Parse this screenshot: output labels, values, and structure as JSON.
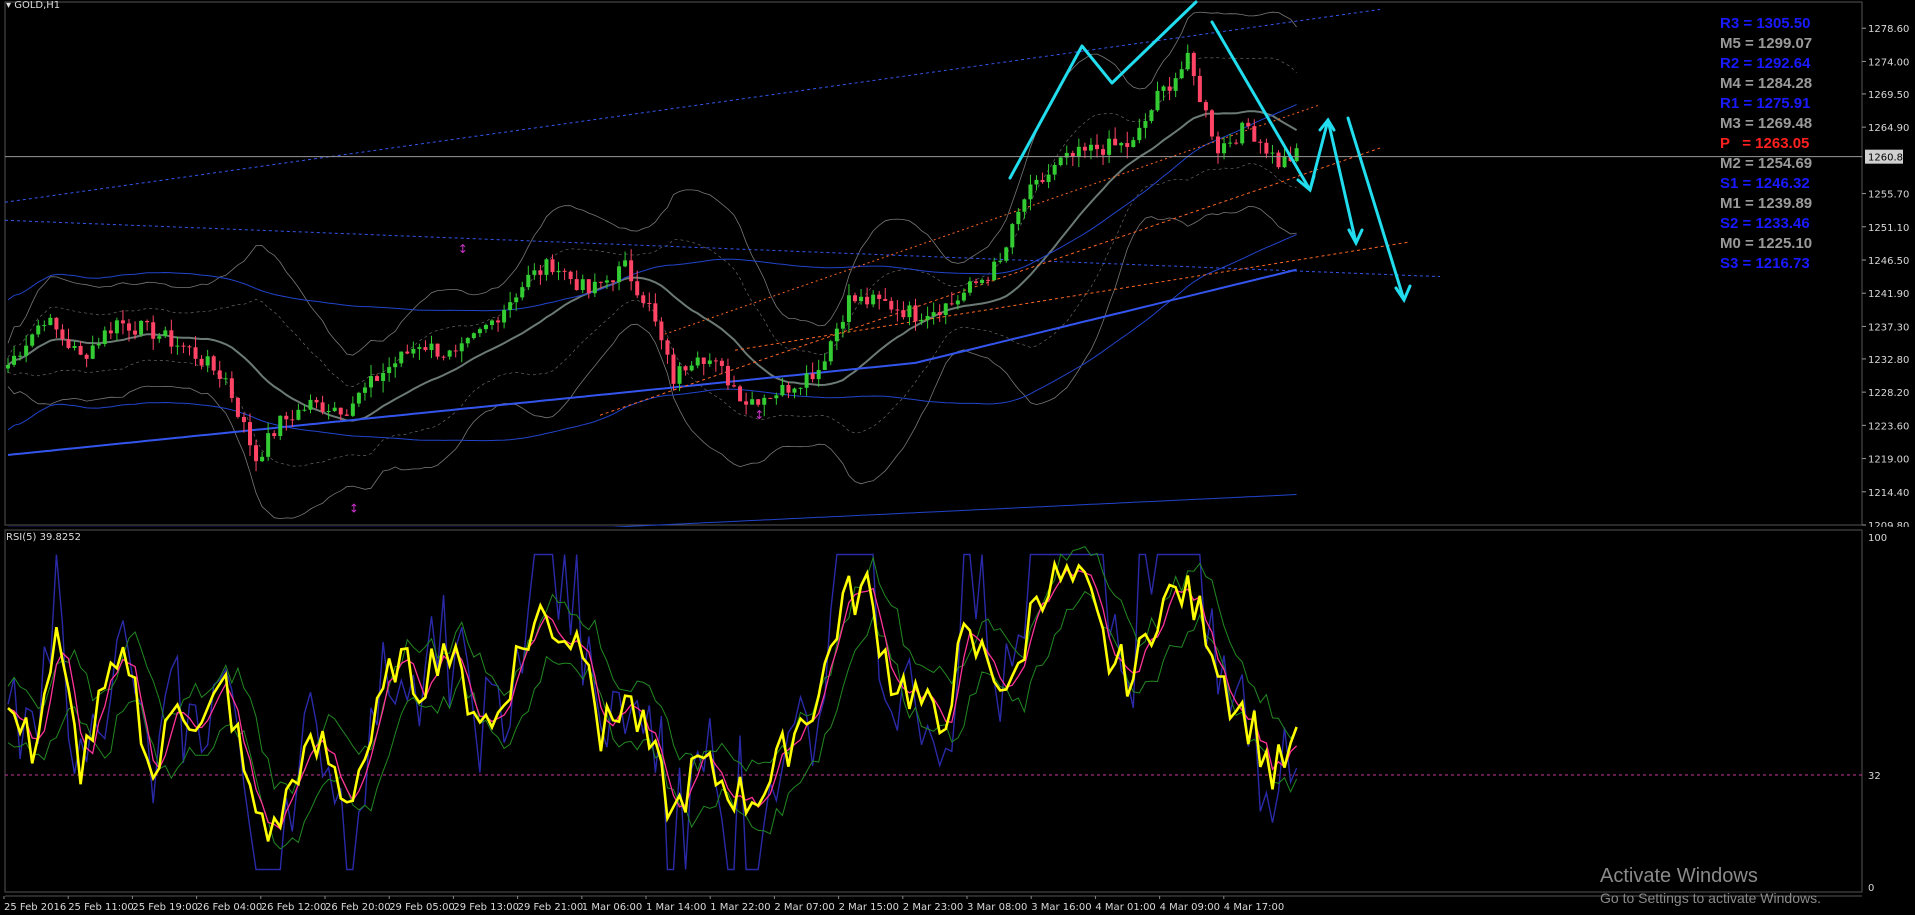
{
  "symbol_label": "GOLD,H1",
  "rsi_label": "RSI(5) 39.8252",
  "pivots": [
    {
      "label": "R3 = 1305.50",
      "color": "#1a1aff"
    },
    {
      "label": "M5 = 1299.07",
      "color": "#9a9a9a"
    },
    {
      "label": "R2 = 1292.64",
      "color": "#1a1aff"
    },
    {
      "label": "M4 = 1284.28",
      "color": "#9a9a9a"
    },
    {
      "label": "R1 = 1275.91",
      "color": "#1a1aff"
    },
    {
      "label": "M3 = 1269.48",
      "color": "#9a9a9a"
    },
    {
      "label": "P   = 1263.05",
      "color": "#ff2020"
    },
    {
      "label": "M2 = 1254.69",
      "color": "#9a9a9a"
    },
    {
      "label": "S1 = 1246.32",
      "color": "#1a1aff"
    },
    {
      "label": "M1 = 1239.89",
      "color": "#9a9a9a"
    },
    {
      "label": "S2 = 1233.46",
      "color": "#1a1aff"
    },
    {
      "label": "M0 = 1225.10",
      "color": "#9a9a9a"
    },
    {
      "label": "S3 = 1216.73",
      "color": "#1a1aff"
    }
  ],
  "watermark": {
    "title": "Activate Windows",
    "subtitle": "Go to Settings to activate Windows."
  },
  "colors": {
    "bull": "#33cc33",
    "bear": "#ff4466",
    "rsi_main": "#ffff00",
    "arrows": "#22ddee",
    "bands": "#2244cc"
  },
  "chart_data": [
    {
      "type": "candlestick",
      "symbol": "GOLD",
      "timeframe": "H1",
      "ylim": [
        1209.8,
        1281.4
      ],
      "price_ticks": [
        "1278.60",
        "1274.00",
        "1269.50",
        "1264.90",
        "1260.81",
        "1255.70",
        "1251.10",
        "1246.50",
        "1241.90",
        "1237.30",
        "1232.80",
        "1228.20",
        "1223.60",
        "1219.00",
        "1214.40",
        "1209.80"
      ],
      "current_price": 1260.81,
      "x_labels": [
        "25 Feb 2016",
        "25 Feb 11:00",
        "25 Feb 19:00",
        "26 Feb 04:00",
        "26 Feb 12:00",
        "26 Feb 20:00",
        "29 Feb 05:00",
        "29 Feb 13:00",
        "29 Feb 21:00",
        "1 Mar 06:00",
        "1 Mar 14:00",
        "1 Mar 22:00",
        "2 Mar 07:00",
        "2 Mar 15:00",
        "2 Mar 23:00",
        "3 Mar 08:00",
        "3 Mar 16:00",
        "4 Mar 01:00",
        "4 Mar 09:00",
        "4 Mar 17:00"
      ],
      "close_path": [
        [
          0,
          1232.0
        ],
        [
          6,
          1238.5
        ],
        [
          12,
          1233.0
        ],
        [
          18,
          1238.0
        ],
        [
          24,
          1236.5
        ],
        [
          30,
          1234.0
        ],
        [
          36,
          1230.0
        ],
        [
          41,
          1219.0
        ],
        [
          45,
          1224.0
        ],
        [
          50,
          1226.5
        ],
        [
          56,
          1226.0
        ],
        [
          62,
          1231.0
        ],
        [
          68,
          1235.0
        ],
        [
          74,
          1233.0
        ],
        [
          80,
          1238.0
        ],
        [
          86,
          1244.0
        ],
        [
          90,
          1246.0
        ],
        [
          96,
          1242.0
        ],
        [
          102,
          1245.5
        ],
        [
          106,
          1240.0
        ],
        [
          110,
          1230.0
        ],
        [
          114,
          1234.0
        ],
        [
          118,
          1231.0
        ],
        [
          122,
          1227.0
        ],
        [
          128,
          1228.5
        ],
        [
          134,
          1231.5
        ],
        [
          139,
          1241.0
        ],
        [
          145,
          1240.5
        ],
        [
          150,
          1239.0
        ],
        [
          156,
          1240.5
        ],
        [
          164,
          1246.0
        ],
        [
          168,
          1255.0
        ],
        [
          174,
          1260.0
        ],
        [
          180,
          1262.0
        ],
        [
          186,
          1262.5
        ],
        [
          190,
          1269.0
        ],
        [
          195,
          1274.0
        ],
        [
          200,
          1262.0
        ],
        [
          205,
          1265.0
        ],
        [
          210,
          1260.0
        ],
        [
          213,
          1261.0
        ]
      ],
      "arrow_count": 4
    },
    {
      "type": "line",
      "title": "RSI(5) 39.8252",
      "ylim": [
        0,
        100
      ],
      "y_ticks": [
        "100",
        "32",
        "0"
      ],
      "level": 32,
      "rsi_path": [
        [
          0,
          50
        ],
        [
          4,
          40
        ],
        [
          8,
          70
        ],
        [
          12,
          35
        ],
        [
          16,
          55
        ],
        [
          20,
          65
        ],
        [
          24,
          30
        ],
        [
          28,
          55
        ],
        [
          32,
          45
        ],
        [
          36,
          58
        ],
        [
          40,
          25
        ],
        [
          44,
          15
        ],
        [
          48,
          35
        ],
        [
          52,
          40
        ],
        [
          56,
          25
        ],
        [
          60,
          42
        ],
        [
          64,
          65
        ],
        [
          68,
          58
        ],
        [
          72,
          70
        ],
        [
          76,
          55
        ],
        [
          80,
          45
        ],
        [
          84,
          65
        ],
        [
          88,
          78
        ],
        [
          92,
          72
        ],
        [
          96,
          70
        ],
        [
          98,
          42
        ],
        [
          102,
          55
        ],
        [
          106,
          40
        ],
        [
          110,
          20
        ],
        [
          114,
          35
        ],
        [
          118,
          30
        ],
        [
          122,
          25
        ],
        [
          126,
          30
        ],
        [
          130,
          45
        ],
        [
          134,
          55
        ],
        [
          138,
          82
        ],
        [
          142,
          85
        ],
        [
          146,
          60
        ],
        [
          150,
          55
        ],
        [
          154,
          45
        ],
        [
          158,
          70
        ],
        [
          162,
          65
        ],
        [
          166,
          55
        ],
        [
          170,
          85
        ],
        [
          174,
          88
        ],
        [
          178,
          85
        ],
        [
          182,
          65
        ],
        [
          186,
          60
        ],
        [
          190,
          80
        ],
        [
          194,
          85
        ],
        [
          198,
          75
        ],
        [
          202,
          55
        ],
        [
          206,
          45
        ],
        [
          209,
          32
        ],
        [
          213,
          40
        ]
      ]
    }
  ]
}
